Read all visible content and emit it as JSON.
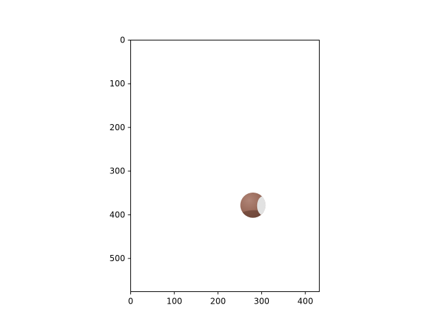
{
  "chart_data": {
    "type": "image",
    "title": "",
    "xlabel": "",
    "ylabel": "",
    "xlim": [
      0,
      432
    ],
    "ylim": [
      576,
      0
    ],
    "y_axis_inverted": true,
    "grid": false,
    "legend": "none",
    "x_ticks": [
      0,
      100,
      200,
      300,
      400
    ],
    "y_ticks": [
      0,
      100,
      200,
      300,
      400,
      500
    ],
    "x_tick_labels": [
      "0",
      "100",
      "200",
      "300",
      "400"
    ],
    "y_tick_labels": [
      "0",
      "100",
      "200",
      "300",
      "400",
      "500"
    ],
    "image_content": {
      "shape": "circular cutout",
      "center": [
        280,
        378
      ],
      "radius": 29,
      "colors": {
        "skin_light": "#b08577",
        "skin_mid": "#9b6c5c",
        "skin_dark": "#6e4638",
        "highlight": "#e2e2e2",
        "background": "#ffffff"
      }
    }
  }
}
